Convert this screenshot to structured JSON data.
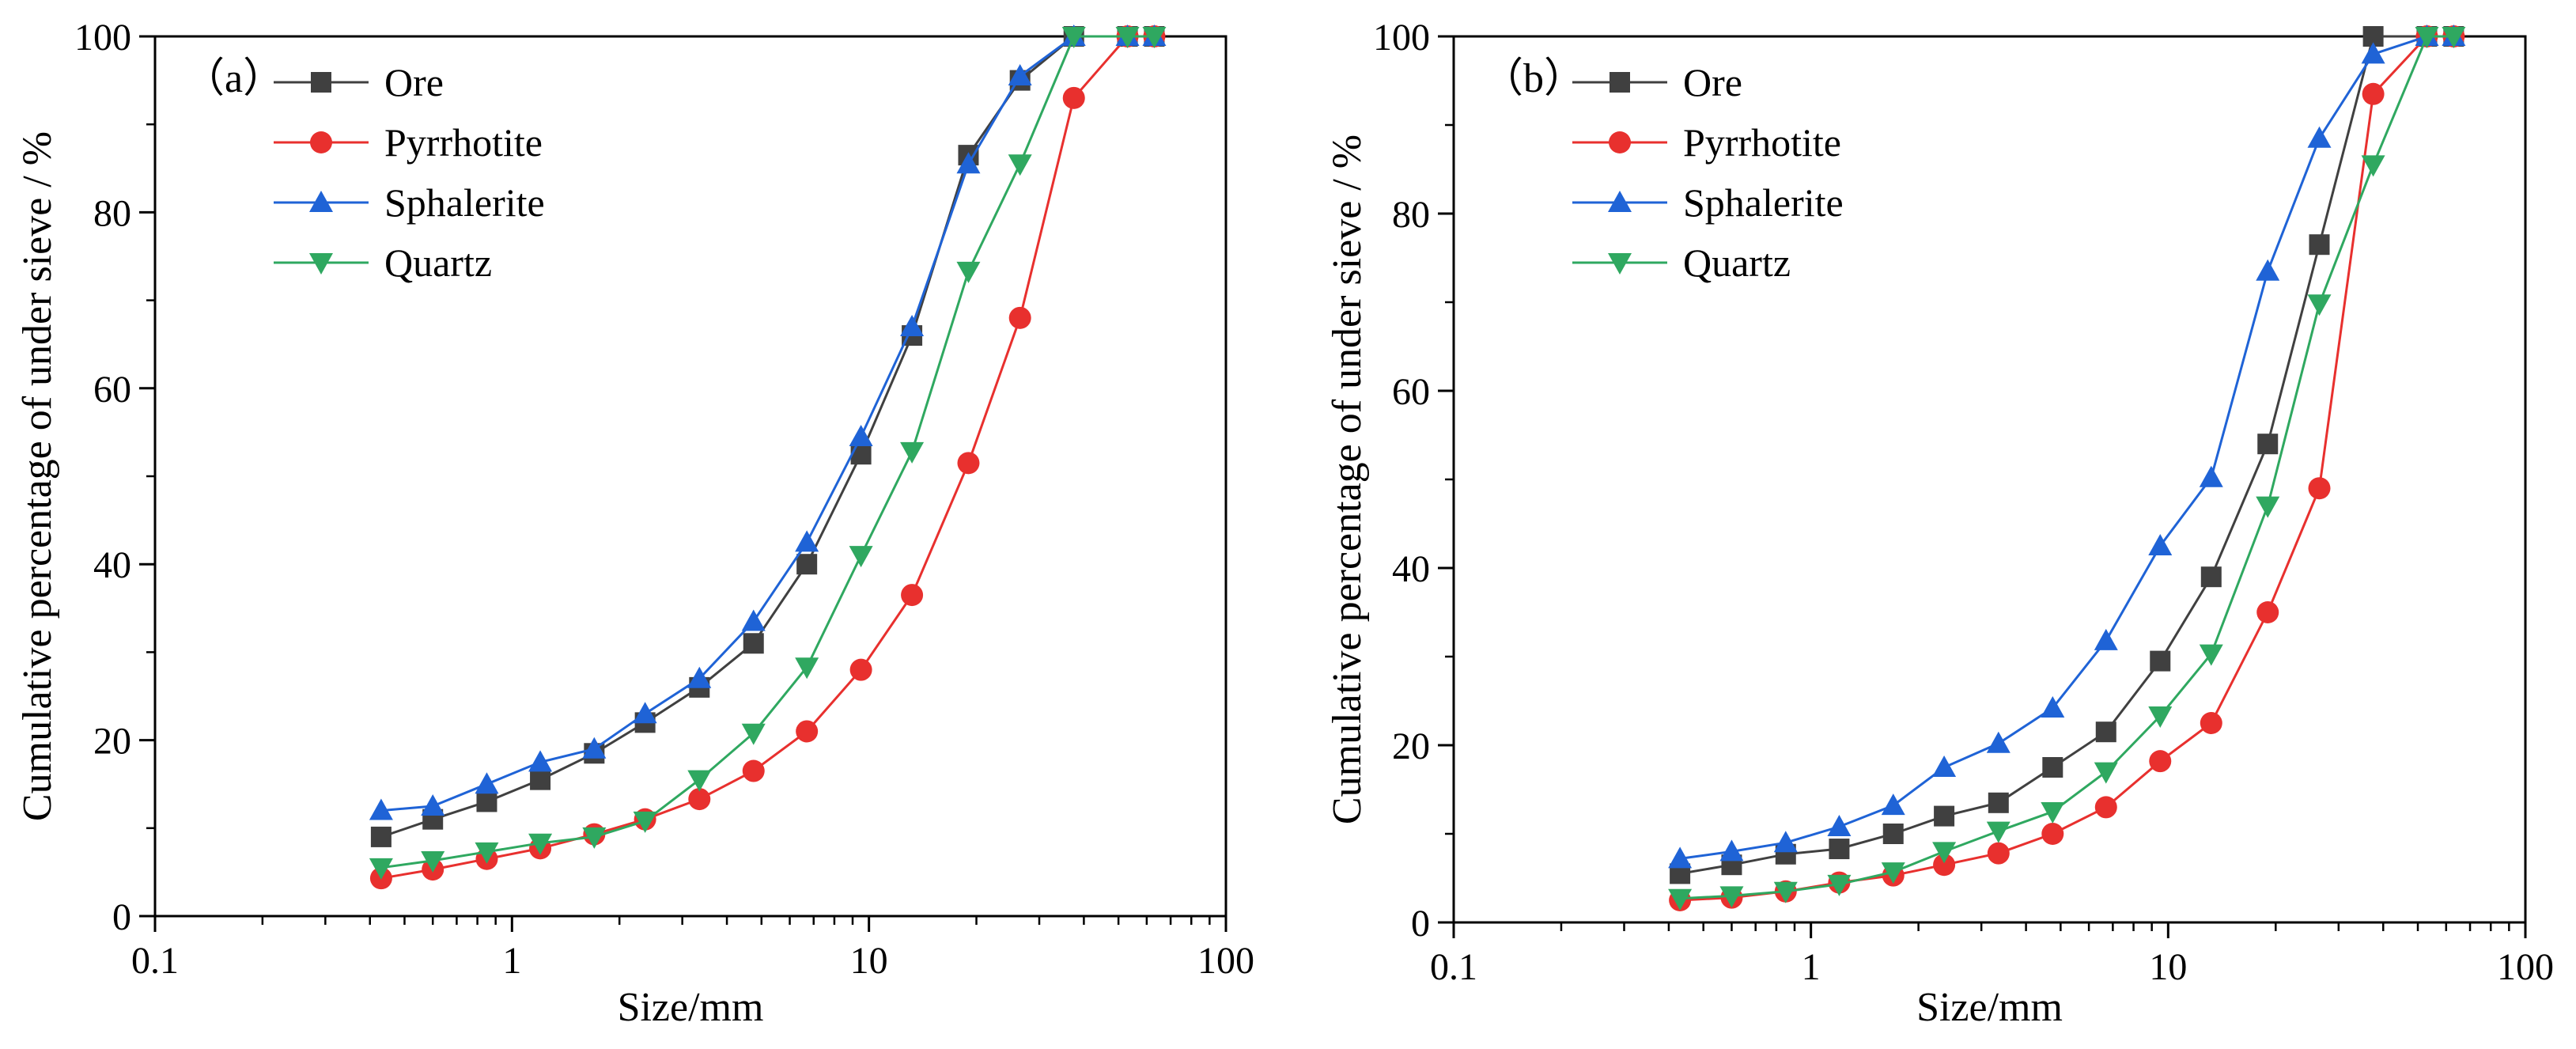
{
  "chart_data": [
    {
      "id": "a",
      "type": "line",
      "panel_label": "（a）",
      "title": "",
      "xlabel": "Size/mm",
      "ylabel": "Cumulative percentage of under sieve / %",
      "xscale": "log",
      "xlim": [
        0.1,
        100
      ],
      "ylim": [
        0,
        100
      ],
      "xticks": [
        0.1,
        1,
        10,
        100
      ],
      "xtick_labels": [
        "0.1",
        "1",
        "10",
        "100"
      ],
      "yticks": [
        0,
        20,
        40,
        60,
        80,
        100
      ],
      "ytick_labels": [
        "0",
        "20",
        "40",
        "60",
        "80",
        "100"
      ],
      "grid": false,
      "legend_position": "top-left",
      "x": [
        0.43,
        0.6,
        0.85,
        1.2,
        1.7,
        2.36,
        3.35,
        4.75,
        6.7,
        9.5,
        13.2,
        19,
        26.5,
        37.5,
        53,
        63
      ],
      "series": [
        {
          "name": "Ore",
          "color": "#404040",
          "marker": "square",
          "values": [
            9,
            11,
            13,
            15.5,
            18.5,
            22,
            26,
            31,
            40,
            52.5,
            66,
            86.5,
            95,
            100,
            100,
            100
          ]
        },
        {
          "name": "Pyrrhotite",
          "color": "#e8302e",
          "marker": "circle",
          "values": [
            4.3,
            5.3,
            6.5,
            7.7,
            9.3,
            11,
            13.3,
            16.5,
            21,
            28,
            36.5,
            51.5,
            68,
            93,
            100,
            100
          ]
        },
        {
          "name": "Sphalerite",
          "color": "#1f63d6",
          "marker": "triangle-up",
          "values": [
            12,
            12.5,
            15,
            17.5,
            19,
            23,
            27,
            33.5,
            42.5,
            54.5,
            67,
            85.5,
            95.5,
            100,
            100,
            100
          ]
        },
        {
          "name": "Quartz",
          "color": "#2fa860",
          "marker": "triangle-down",
          "values": [
            5.5,
            6.3,
            7.3,
            8.3,
            9,
            10.8,
            15.5,
            20.8,
            28.3,
            41,
            52.8,
            73.3,
            85.5,
            100,
            100,
            100
          ]
        }
      ]
    },
    {
      "id": "b",
      "type": "line",
      "panel_label": "（b）",
      "title": "",
      "xlabel": "Size/mm",
      "ylabel": "Cumulative percentage of under sieve / %",
      "xscale": "log",
      "xlim": [
        0.1,
        100
      ],
      "ylim": [
        0,
        100
      ],
      "xticks": [
        0.1,
        1,
        10,
        100
      ],
      "xtick_labels": [
        "0.1",
        "1",
        "10",
        "100"
      ],
      "yticks": [
        0,
        20,
        40,
        60,
        80,
        100
      ],
      "ytick_labels": [
        "0",
        "20",
        "40",
        "60",
        "80",
        "100"
      ],
      "grid": false,
      "legend_position": "top-left",
      "x": [
        0.43,
        0.6,
        0.85,
        1.2,
        1.7,
        2.36,
        3.35,
        4.75,
        6.7,
        9.5,
        13.2,
        19,
        26.5,
        37.5,
        53,
        63
      ],
      "series": [
        {
          "name": "Ore",
          "color": "#404040",
          "marker": "square",
          "values": [
            5.5,
            6.5,
            7.7,
            8.3,
            10,
            12,
            13.5,
            17.5,
            21.5,
            29.5,
            39,
            54,
            76.5,
            100,
            100,
            100
          ]
        },
        {
          "name": "Pyrrhotite",
          "color": "#e8302e",
          "marker": "circle",
          "values": [
            2.5,
            2.8,
            3.5,
            4.5,
            5.3,
            6.5,
            7.8,
            10,
            13,
            18.2,
            22.5,
            35,
            49,
            93.5,
            100,
            100
          ]
        },
        {
          "name": "Sphalerite",
          "color": "#1f63d6",
          "marker": "triangle-up",
          "values": [
            7.2,
            8,
            9,
            10.8,
            13.2,
            17.5,
            20.2,
            24.2,
            31.8,
            42.5,
            50.2,
            73.5,
            88.5,
            98,
            100,
            100
          ]
        },
        {
          "name": "Quartz",
          "color": "#2fa860",
          "marker": "triangle-down",
          "values": [
            2.7,
            3,
            3.5,
            4.3,
            5.7,
            8,
            10.3,
            12.5,
            17,
            23.3,
            30.3,
            47,
            69.8,
            85.5,
            100,
            100
          ]
        }
      ]
    }
  ]
}
